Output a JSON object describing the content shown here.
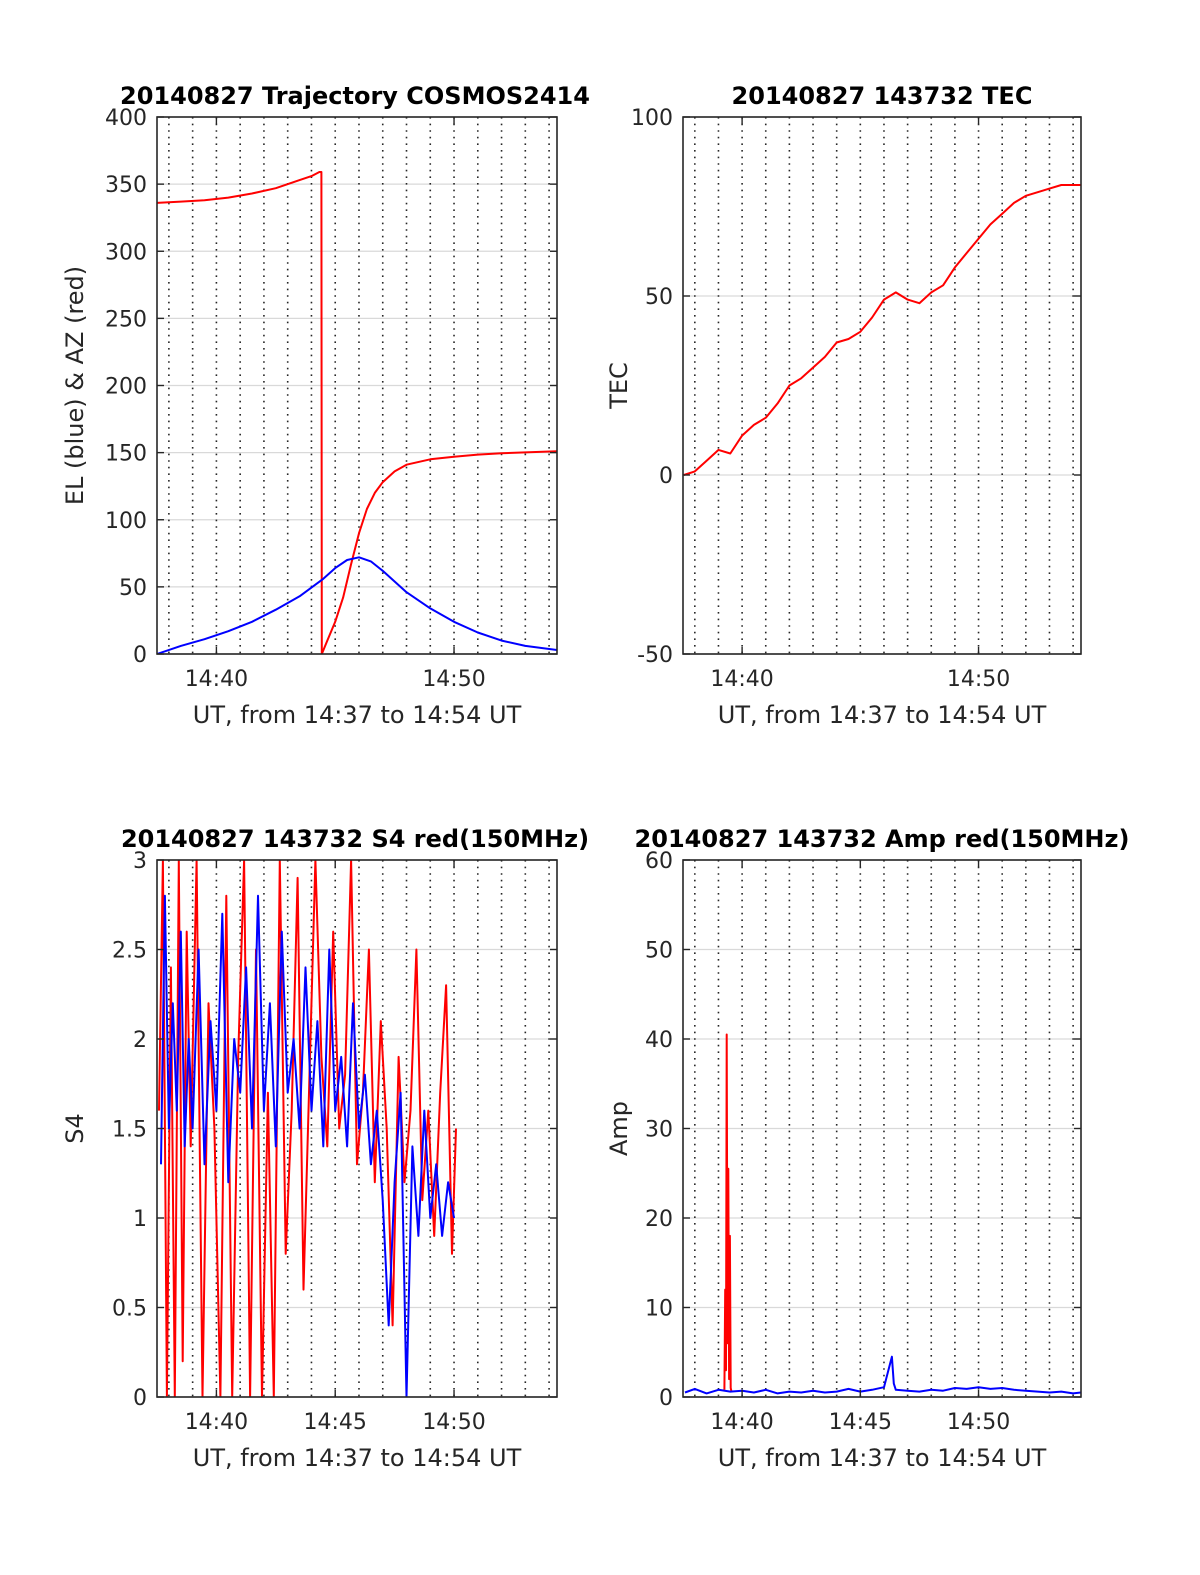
{
  "figure": {
    "colors": {
      "red": "#ff0000",
      "blue": "#0000ff",
      "grid": "#d9d9d9",
      "axis": "#262626"
    }
  },
  "chart_data": [
    {
      "type": "line",
      "title": "20140827 Trajectory COSMOS2414",
      "xlabel": "UT, from 14:37 to 14:54 UT",
      "ylabel": "EL (blue) & AZ (red)",
      "xlim": [
        "14:37:30",
        "14:54:20"
      ],
      "ylim": [
        0,
        400
      ],
      "yticks": [
        "0",
        "50",
        "100",
        "150",
        "200",
        "250",
        "300",
        "350",
        "400"
      ],
      "xticks": [
        {
          "t": "14:40",
          "label": "14:40"
        },
        {
          "t": "14:50",
          "label": "14:50"
        }
      ],
      "grid": "horizontal solid, vertical dotted every minute",
      "series": [
        {
          "name": "AZ (red)",
          "color": "#ff0000",
          "x": [
            "14:37:30",
            "14:38:30",
            "14:39:30",
            "14:40:30",
            "14:41:30",
            "14:42:30",
            "14:43:30",
            "14:44:00",
            "14:44:20",
            "14:44:25",
            "14:44:26",
            "14:44:40",
            "14:45:00",
            "14:45:20",
            "14:45:40",
            "14:46:00",
            "14:46:20",
            "14:46:40",
            "14:47:00",
            "14:47:30",
            "14:48:00",
            "14:49:00",
            "14:50:00",
            "14:51:00",
            "14:52:00",
            "14:53:00",
            "14:54:20"
          ],
          "y": [
            336,
            337,
            338,
            340,
            343,
            347,
            353,
            356,
            359,
            359,
            0,
            10,
            24,
            42,
            67,
            90,
            108,
            120,
            128,
            136,
            141,
            145,
            147,
            148.5,
            149.5,
            150.2,
            151
          ]
        },
        {
          "name": "EL (blue)",
          "color": "#0000ff",
          "x": [
            "14:37:30",
            "14:38:30",
            "14:39:30",
            "14:40:30",
            "14:41:30",
            "14:42:30",
            "14:43:30",
            "14:44:30",
            "14:45:00",
            "14:45:30",
            "14:46:00",
            "14:46:30",
            "14:47:00",
            "14:47:30",
            "14:48:00",
            "14:49:00",
            "14:50:00",
            "14:51:00",
            "14:52:00",
            "14:53:00",
            "14:54:20"
          ],
          "y": [
            0,
            6,
            11,
            17,
            24,
            33,
            43,
            56,
            64,
            70,
            72,
            69,
            62,
            54,
            46,
            34,
            24,
            16,
            10,
            6,
            3
          ]
        }
      ]
    },
    {
      "type": "line",
      "title": "20140827 143732 TEC",
      "xlabel": "UT, from 14:37 to 14:54 UT",
      "ylabel": "TEC",
      "xlim": [
        "14:37:30",
        "14:54:20"
      ],
      "ylim": [
        -50,
        100
      ],
      "yticks": [
        "-50",
        "0",
        "50",
        "100"
      ],
      "xticks": [
        {
          "t": "14:40",
          "label": "14:40"
        },
        {
          "t": "14:50",
          "label": "14:50"
        }
      ],
      "grid": "horizontal solid, vertical dotted every minute",
      "series": [
        {
          "color": "#ff0000",
          "x": [
            "14:37:32",
            "14:38:00",
            "14:38:30",
            "14:39:00",
            "14:39:30",
            "14:40:00",
            "14:40:30",
            "14:41:00",
            "14:41:30",
            "14:42:00",
            "14:42:30",
            "14:43:00",
            "14:43:30",
            "14:44:00",
            "14:44:30",
            "14:45:00",
            "14:45:30",
            "14:46:00",
            "14:46:30",
            "14:47:00",
            "14:47:30",
            "14:48:00",
            "14:48:30",
            "14:49:00",
            "14:49:30",
            "14:50:00",
            "14:50:30",
            "14:51:00",
            "14:51:30",
            "14:52:00",
            "14:52:30",
            "14:53:00",
            "14:53:30",
            "14:54:00",
            "14:54:20"
          ],
          "y": [
            0,
            1,
            4,
            7,
            6,
            11,
            14,
            16,
            20,
            25,
            27,
            30,
            33,
            37,
            38,
            40,
            44,
            49,
            51,
            49,
            48,
            51,
            53,
            58,
            62,
            66,
            70,
            73,
            76,
            78,
            79,
            80,
            81,
            81,
            81
          ]
        }
      ]
    },
    {
      "type": "line",
      "title": "20140827 143732 S4 red(150MHz)",
      "xlabel": "UT, from 14:37 to 14:54 UT",
      "ylabel": "S4",
      "xlim": [
        "14:37:30",
        "14:54:20"
      ],
      "ylim": [
        0,
        3
      ],
      "yticks": [
        "0",
        "0.5",
        "1",
        "1.5",
        "2",
        "2.5",
        "3"
      ],
      "xticks": [
        {
          "t": "14:40",
          "label": "14:40"
        },
        {
          "t": "14:45",
          "label": "14:45"
        },
        {
          "t": "14:50",
          "label": "14:50"
        }
      ],
      "grid": "horizontal solid, vertical dotted every minute",
      "series": [
        {
          "color": "#ff0000",
          "x": [
            "14:37:35",
            "14:37:45",
            "14:37:55",
            "14:38:05",
            "14:38:15",
            "14:38:25",
            "14:38:35",
            "14:38:45",
            "14:38:55",
            "14:39:10",
            "14:39:25",
            "14:39:40",
            "14:39:55",
            "14:40:10",
            "14:40:25",
            "14:40:40",
            "14:40:55",
            "14:41:10",
            "14:41:25",
            "14:41:40",
            "14:41:55",
            "14:42:10",
            "14:42:25",
            "14:42:40",
            "14:42:55",
            "14:43:10",
            "14:43:25",
            "14:43:40",
            "14:43:55",
            "14:44:10",
            "14:44:25",
            "14:44:40",
            "14:44:55",
            "14:45:10",
            "14:45:25",
            "14:45:40",
            "14:45:55",
            "14:46:10",
            "14:46:25",
            "14:46:40",
            "14:46:55",
            "14:47:10",
            "14:47:25",
            "14:47:40",
            "14:47:55",
            "14:48:10",
            "14:48:25",
            "14:48:40",
            "14:48:55",
            "14:49:10",
            "14:49:25",
            "14:49:40",
            "14:49:55",
            "14:50:05"
          ],
          "y": [
            1.6,
            3,
            0,
            2.4,
            0,
            3,
            0.2,
            2.6,
            1.4,
            3,
            0,
            2.2,
            1.5,
            0,
            2.8,
            0,
            1.9,
            3,
            0,
            2.5,
            0,
            1.7,
            0,
            3,
            0.8,
            1.6,
            2.9,
            0.6,
            1.8,
            3,
            1.9,
            1.4,
            2.6,
            1.5,
            1.8,
            3,
            1.3,
            1.7,
            2.5,
            1.2,
            2.1,
            1.5,
            0.4,
            1.9,
            1.2,
            1.6,
            2.5,
            1.1,
            1.6,
            0.9,
            1.7,
            2.3,
            0.8,
            1.5
          ]
        },
        {
          "color": "#0000ff",
          "x": [
            "14:37:40",
            "14:37:50",
            "14:38:00",
            "14:38:10",
            "14:38:20",
            "14:38:30",
            "14:38:40",
            "14:38:50",
            "14:39:00",
            "14:39:15",
            "14:39:30",
            "14:39:45",
            "14:40:00",
            "14:40:15",
            "14:40:30",
            "14:40:45",
            "14:41:00",
            "14:41:15",
            "14:41:30",
            "14:41:45",
            "14:42:00",
            "14:42:15",
            "14:42:30",
            "14:42:45",
            "14:43:00",
            "14:43:15",
            "14:43:30",
            "14:43:45",
            "14:44:00",
            "14:44:15",
            "14:44:30",
            "14:44:45",
            "14:45:00",
            "14:45:15",
            "14:45:30",
            "14:45:45",
            "14:46:00",
            "14:46:15",
            "14:46:30",
            "14:46:45",
            "14:47:00",
            "14:47:15",
            "14:47:30",
            "14:47:45",
            "14:48:00",
            "14:48:15",
            "14:48:30",
            "14:48:45",
            "14:49:00",
            "14:49:15",
            "14:49:30",
            "14:49:45",
            "14:50:00"
          ],
          "y": [
            1.3,
            2.8,
            1.5,
            2.2,
            1.6,
            2.6,
            1.4,
            2.0,
            1.5,
            2.5,
            1.3,
            2.1,
            1.6,
            2.7,
            1.2,
            2.0,
            1.7,
            2.4,
            1.5,
            2.8,
            1.6,
            2.2,
            1.4,
            2.6,
            1.7,
            2.0,
            1.5,
            2.4,
            1.6,
            2.1,
            1.4,
            2.5,
            1.6,
            1.9,
            1.4,
            2.2,
            1.5,
            1.8,
            1.3,
            1.6,
            1.1,
            0.4,
            1.2,
            1.7,
            0,
            1.4,
            0.9,
            1.6,
            1.0,
            1.3,
            0.9,
            1.2,
            1.0
          ]
        }
      ]
    },
    {
      "type": "line",
      "title": "20140827 143732 Amp red(150MHz)",
      "xlabel": "UT, from 14:37 to 14:54 UT",
      "ylabel": "Amp",
      "xlim": [
        "14:37:30",
        "14:54:20"
      ],
      "ylim": [
        0,
        60
      ],
      "yticks": [
        "0",
        "10",
        "20",
        "30",
        "40",
        "50",
        "60"
      ],
      "xticks": [
        {
          "t": "14:40",
          "label": "14:40"
        },
        {
          "t": "14:45",
          "label": "14:45"
        },
        {
          "t": "14:50",
          "label": "14:50"
        }
      ],
      "grid": "horizontal solid, vertical dotted every minute",
      "series": [
        {
          "color": "#ff0000",
          "x": [
            "14:39:15",
            "14:39:17",
            "14:39:19",
            "14:39:21",
            "14:39:23",
            "14:39:25",
            "14:39:27",
            "14:39:29",
            "14:39:31",
            "14:39:33"
          ],
          "y": [
            0.8,
            12,
            3,
            40.5,
            6,
            25.5,
            2,
            18,
            1,
            0.6
          ]
        },
        {
          "color": "#0000ff",
          "x": [
            "14:37:35",
            "14:38:00",
            "14:38:30",
            "14:39:00",
            "14:39:30",
            "14:40:00",
            "14:40:30",
            "14:41:00",
            "14:41:30",
            "14:42:00",
            "14:42:30",
            "14:43:00",
            "14:43:30",
            "14:44:00",
            "14:44:30",
            "14:45:00",
            "14:45:30",
            "14:46:00",
            "14:46:20",
            "14:46:25",
            "14:46:30",
            "14:47:00",
            "14:47:30",
            "14:48:00",
            "14:48:30",
            "14:49:00",
            "14:49:30",
            "14:50:00",
            "14:50:30",
            "14:51:00",
            "14:51:30",
            "14:52:00",
            "14:52:30",
            "14:53:00",
            "14:53:30",
            "14:54:00",
            "14:54:20"
          ],
          "y": [
            0.5,
            0.9,
            0.4,
            0.8,
            0.6,
            0.7,
            0.5,
            0.8,
            0.4,
            0.6,
            0.5,
            0.7,
            0.5,
            0.6,
            0.9,
            0.6,
            0.8,
            1.1,
            4.5,
            1.5,
            0.8,
            0.7,
            0.6,
            0.8,
            0.7,
            1.0,
            0.9,
            1.1,
            0.9,
            1.0,
            0.8,
            0.7,
            0.6,
            0.5,
            0.6,
            0.4,
            0.5
          ]
        }
      ]
    }
  ]
}
